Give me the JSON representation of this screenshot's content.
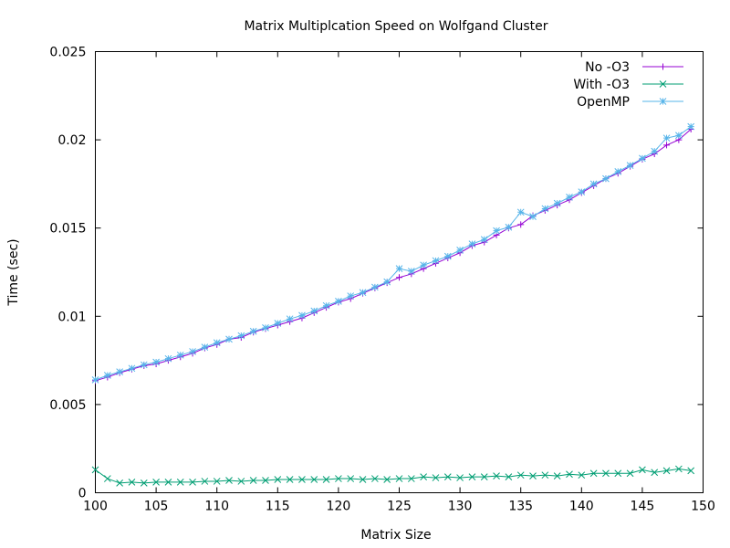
{
  "chart_data": {
    "type": "line",
    "title": "Matrix Multiplcation Speed on Wolfgand Cluster",
    "xlabel": "Matrix Size",
    "ylabel": "Time (sec)",
    "xlim": [
      100,
      150
    ],
    "ylim": [
      0,
      0.025
    ],
    "xticks": [
      100,
      105,
      110,
      115,
      120,
      125,
      130,
      135,
      140,
      145,
      150
    ],
    "yticks": [
      0,
      0.005,
      0.01,
      0.015,
      0.02,
      0.025
    ],
    "xtick_labels": [
      "100",
      "105",
      "110",
      "115",
      "120",
      "125",
      "130",
      "135",
      "140",
      "145",
      "150"
    ],
    "ytick_labels": [
      "0",
      "0.005",
      "0.01",
      "0.015",
      "0.02",
      "0.025"
    ],
    "grid": false,
    "legend_position": "top-right",
    "x": [
      100,
      101,
      102,
      103,
      104,
      105,
      106,
      107,
      108,
      109,
      110,
      111,
      112,
      113,
      114,
      115,
      116,
      117,
      118,
      119,
      120,
      121,
      122,
      123,
      124,
      125,
      126,
      127,
      128,
      129,
      130,
      131,
      132,
      133,
      134,
      135,
      136,
      137,
      138,
      139,
      140,
      141,
      142,
      143,
      144,
      145,
      146,
      147,
      148,
      149
    ],
    "series": [
      {
        "name": "No -O3",
        "color": "#9400d3",
        "marker": "plus",
        "values": [
          0.00635,
          0.00655,
          0.0068,
          0.007,
          0.0072,
          0.0073,
          0.0075,
          0.0077,
          0.0079,
          0.0082,
          0.0084,
          0.0087,
          0.0088,
          0.0091,
          0.0093,
          0.0095,
          0.0097,
          0.0099,
          0.0102,
          0.0105,
          0.0108,
          0.011,
          0.0113,
          0.0116,
          0.0119,
          0.0122,
          0.0124,
          0.0127,
          0.013,
          0.0133,
          0.0136,
          0.014,
          0.0142,
          0.0146,
          0.015,
          0.0152,
          0.0157,
          0.016,
          0.0163,
          0.0166,
          0.017,
          0.0174,
          0.0178,
          0.0181,
          0.0185,
          0.0189,
          0.0192,
          0.0197,
          0.02,
          0.0206
        ]
      },
      {
        "name": "With -O3",
        "color": "#009e73",
        "marker": "cross",
        "values": [
          0.0013,
          0.0008,
          0.00055,
          0.0006,
          0.00055,
          0.0006,
          0.0006,
          0.0006,
          0.0006,
          0.00065,
          0.00065,
          0.0007,
          0.00065,
          0.0007,
          0.0007,
          0.00075,
          0.00075,
          0.00075,
          0.00075,
          0.00075,
          0.0008,
          0.0008,
          0.00075,
          0.0008,
          0.00075,
          0.0008,
          0.0008,
          0.0009,
          0.00085,
          0.0009,
          0.00085,
          0.0009,
          0.0009,
          0.00095,
          0.0009,
          0.001,
          0.00095,
          0.001,
          0.00095,
          0.00105,
          0.001,
          0.0011,
          0.0011,
          0.0011,
          0.0011,
          0.0013,
          0.00115,
          0.00125,
          0.00135,
          0.00125
        ]
      },
      {
        "name": "OpenMP",
        "color": "#56b4e9",
        "marker": "star",
        "values": [
          0.0064,
          0.00665,
          0.00685,
          0.00705,
          0.00725,
          0.0074,
          0.0076,
          0.0078,
          0.008,
          0.00825,
          0.0085,
          0.0087,
          0.0089,
          0.00915,
          0.00935,
          0.0096,
          0.00985,
          0.01005,
          0.0103,
          0.0106,
          0.01085,
          0.01115,
          0.01135,
          0.01165,
          0.01195,
          0.0127,
          0.01255,
          0.0129,
          0.01315,
          0.0134,
          0.01375,
          0.0141,
          0.01435,
          0.01485,
          0.01505,
          0.0159,
          0.01565,
          0.0161,
          0.0164,
          0.01675,
          0.01705,
          0.0175,
          0.0178,
          0.0182,
          0.01855,
          0.01895,
          0.01935,
          0.0201,
          0.02025,
          0.02075
        ]
      }
    ]
  }
}
